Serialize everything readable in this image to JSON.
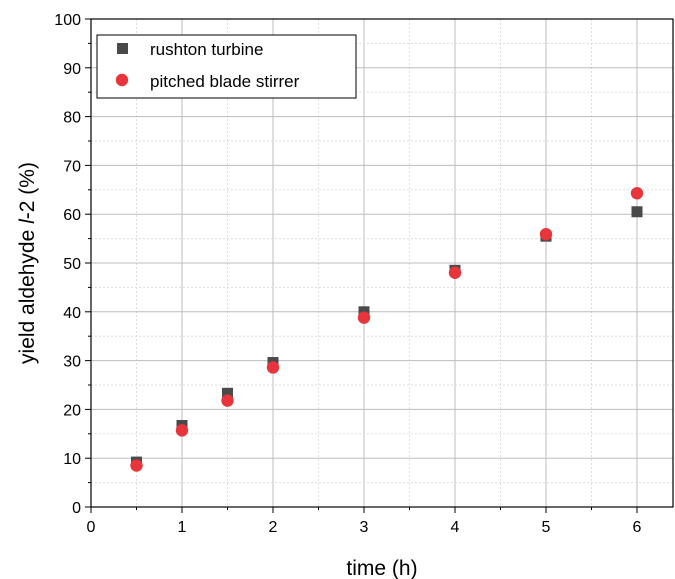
{
  "chart_data": {
    "type": "scatter",
    "xlabel": "time (h)",
    "ylabel_parts": [
      "yield aldehyde ",
      "l",
      "-2 (%)"
    ],
    "xlim": [
      0,
      6.4
    ],
    "ylim": [
      0,
      100
    ],
    "xticks": [
      "0",
      "1",
      "2",
      "3",
      "4",
      "5",
      "6"
    ],
    "yticks": [
      "0",
      "10",
      "20",
      "30",
      "40",
      "50",
      "60",
      "70",
      "80",
      "90",
      "100"
    ],
    "grid": true,
    "legend_position": "top-left",
    "series": [
      {
        "name": "rushton turbine",
        "marker": "square",
        "color": "#4a4a4a",
        "x": [
          0.5,
          1,
          1.5,
          2,
          3,
          4,
          5,
          6
        ],
        "y": [
          9.2,
          16.7,
          23.3,
          29.6,
          40.0,
          48.5,
          55.5,
          60.5
        ]
      },
      {
        "name": "pitched blade stirrer",
        "marker": "circle",
        "color": "#e8353b",
        "x": [
          0.5,
          1,
          1.5,
          2,
          3,
          4,
          5,
          6
        ],
        "y": [
          8.5,
          15.7,
          21.8,
          28.6,
          38.8,
          48.0,
          55.9,
          64.3
        ]
      }
    ]
  }
}
